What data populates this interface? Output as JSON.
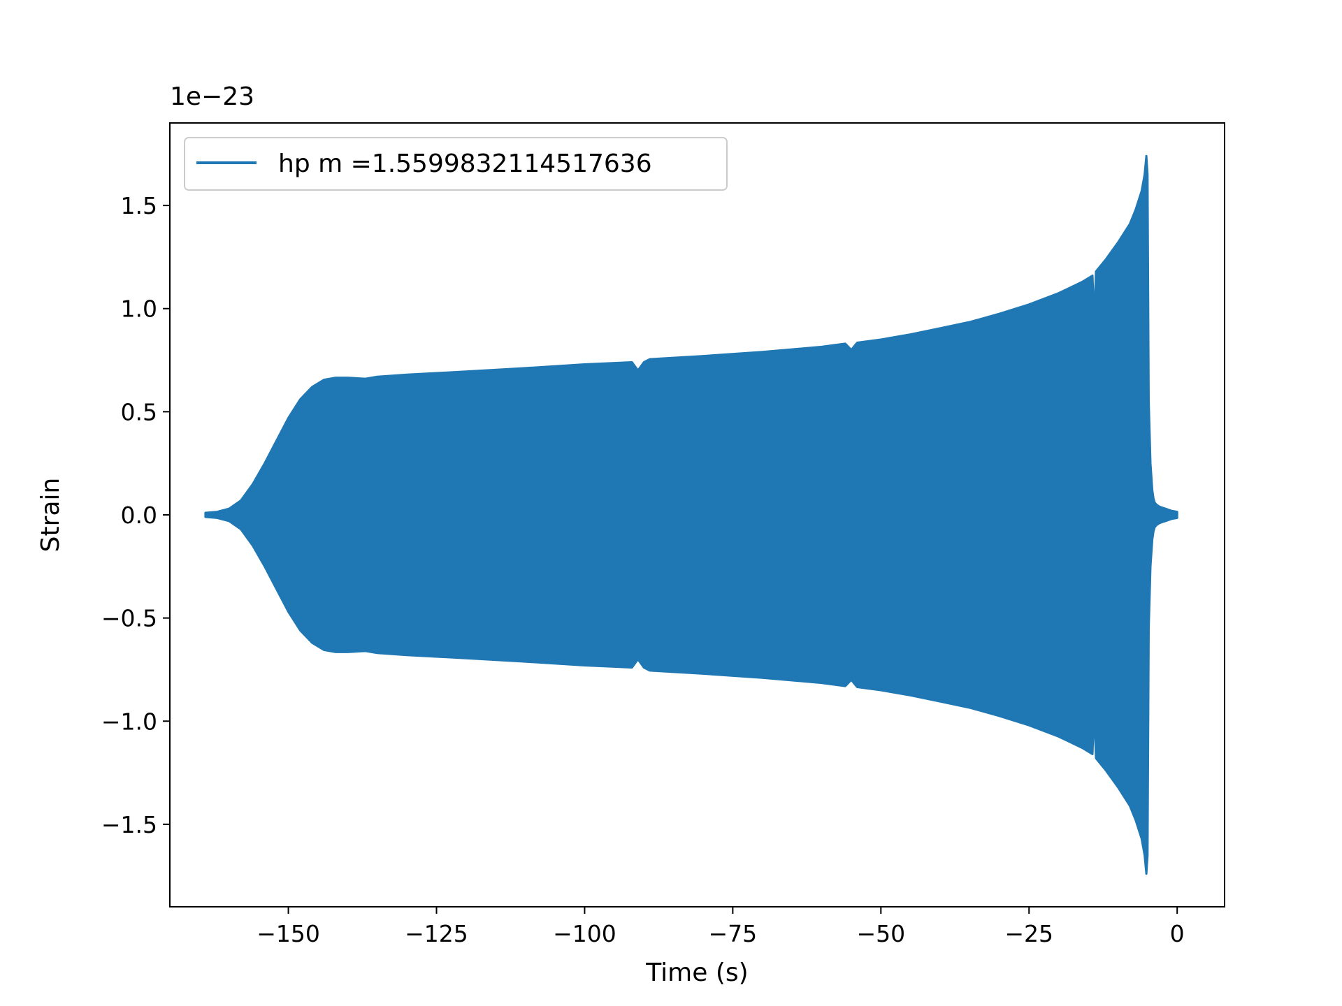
{
  "chart_data": {
    "type": "area",
    "xlabel": "Time (s)",
    "ylabel": "Strain",
    "y_offset_label": "1e−23",
    "xlim": [
      -170,
      8
    ],
    "ylim": [
      -1.9,
      1.9
    ],
    "x_ticks": [
      -150,
      -125,
      -100,
      -75,
      -50,
      -25,
      0
    ],
    "x_tick_labels": [
      "−150",
      "−125",
      "−100",
      "−75",
      "−50",
      "−25",
      "0"
    ],
    "y_ticks": [
      -1.5,
      -1.0,
      -0.5,
      0.0,
      0.5,
      1.0,
      1.5
    ],
    "y_tick_labels": [
      "−1.5",
      "−1.0",
      "−0.5",
      "0.0",
      "0.5",
      "1.0",
      "1.5"
    ],
    "grid": false,
    "legend": {
      "position": "top-left"
    },
    "series": [
      {
        "name": "hp m =1.5599832114517636",
        "color": "#1f77b4",
        "envelope": {
          "x": [
            -164,
            -162,
            -160,
            -158,
            -156,
            -154,
            -152,
            -150,
            -148,
            -146,
            -144,
            -142,
            -140,
            -137,
            -135,
            -130,
            -120,
            -111,
            -100,
            -92,
            -91,
            -90,
            -89,
            -80,
            -70,
            -60,
            -56,
            -55,
            -54,
            -50,
            -45,
            -40,
            -35,
            -30,
            -25,
            -20,
            -16,
            -14.3,
            -14,
            -13.7,
            -12,
            -10,
            -8,
            -7,
            -6,
            -5.5,
            -5.2,
            -5.0,
            -4.8,
            -4.5,
            -4.2,
            -4.0,
            -3.8,
            -3.5,
            -3.0,
            -2.5,
            -2.0,
            -1.5,
            -1.0,
            0
          ],
          "amplitude": [
            0.01,
            0.015,
            0.03,
            0.07,
            0.15,
            0.25,
            0.36,
            0.47,
            0.56,
            0.62,
            0.655,
            0.665,
            0.665,
            0.66,
            0.67,
            0.68,
            0.695,
            0.71,
            0.73,
            0.74,
            0.7,
            0.74,
            0.755,
            0.77,
            0.79,
            0.815,
            0.83,
            0.8,
            0.835,
            0.85,
            0.875,
            0.905,
            0.935,
            0.975,
            1.02,
            1.075,
            1.13,
            1.16,
            0.95,
            1.18,
            1.24,
            1.32,
            1.41,
            1.48,
            1.57,
            1.65,
            1.74,
            1.65,
            0.55,
            0.25,
            0.12,
            0.08,
            0.06,
            0.05,
            0.04,
            0.035,
            0.03,
            0.025,
            0.02,
            0.015
          ]
        }
      }
    ]
  }
}
